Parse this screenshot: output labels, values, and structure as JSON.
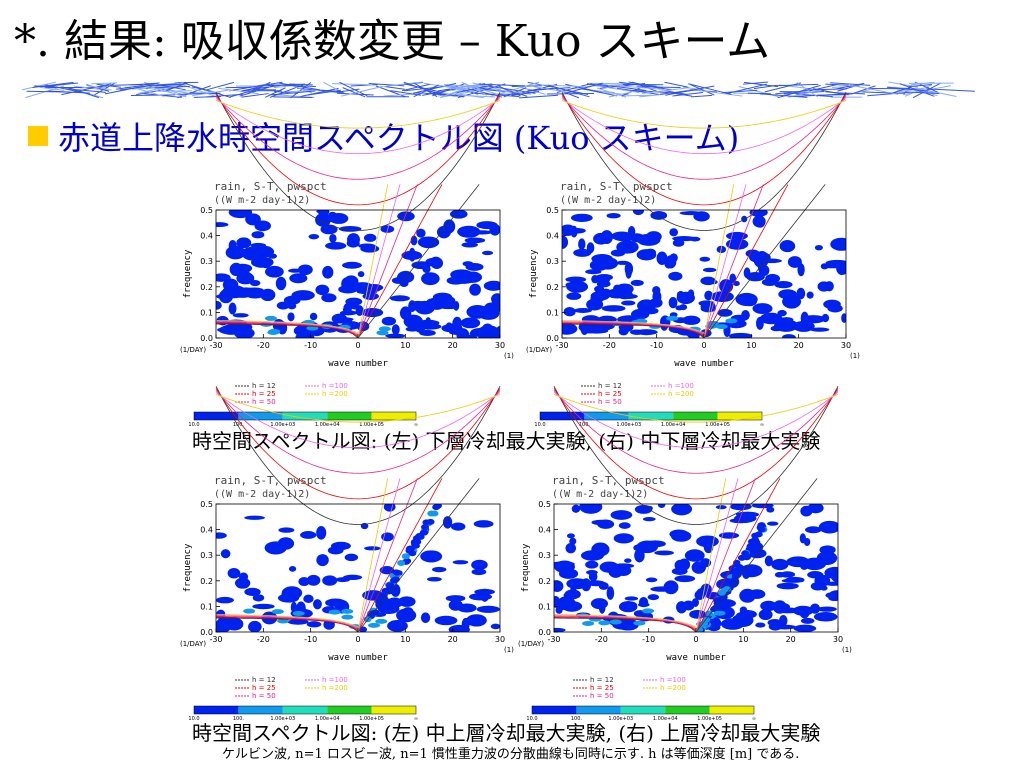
{
  "slide": {
    "title": "*. 結果: 吸収係数変更 – Kuo スキーム",
    "subtitle": "赤道上降水時空間スペクトル図 (Kuo スキーム)",
    "caption_top": "時空間スペクトル図: (左) 下層冷却最大実験, (右) 中下層冷却最大実験",
    "caption_bottom": "時空間スペクトル図: (左) 中上層冷却最大実験, (右) 上層冷却最大実験",
    "footnote": "ケルビン波, n=1 ロスビー波, n=1 慣性重力波の分散曲線も同時に示す. h は等価深度 [m] である."
  },
  "chart_common": {
    "title_line1": "rain, S-T, pwspct",
    "title_line2": "((W m-2 day-1)2)",
    "xlabel": "wave number",
    "ylabel": "frequency",
    "x_unit": "(1)",
    "y_unit": "(1/DAY)",
    "x_ticks": [
      "-30",
      "-20",
      "-10",
      "0",
      "10",
      "20",
      "30"
    ],
    "y_ticks": [
      "0.0",
      "0.1",
      "0.2",
      "0.3",
      "0.4",
      "0.5"
    ],
    "legend": [
      "h = 12",
      "h = 25",
      "h = 50",
      "h =100",
      "h =200"
    ],
    "legend_colors": [
      "#333333",
      "#ee0000",
      "#ee2288",
      "#ee66ee",
      "#eecc00"
    ],
    "colorbar_labels": [
      "10.0",
      "100.",
      "1.00e+03",
      "1.00e+04",
      "1.00e+05",
      "∞"
    ],
    "colorbar_colors": [
      "#0022ee",
      "#1199ee",
      "#22ddbb",
      "#22cc22",
      "#eeee00"
    ]
  },
  "chart_data": [
    {
      "type": "heatmap",
      "name": "下層冷却最大実験",
      "xlim": [
        -30,
        30
      ],
      "ylim": [
        0,
        0.5
      ],
      "density": 0.78,
      "band": 0.0
    },
    {
      "type": "heatmap",
      "name": "中下層冷却最大実験",
      "xlim": [
        -30,
        30
      ],
      "ylim": [
        0,
        0.5
      ],
      "density": 0.82,
      "band": 0.0
    },
    {
      "type": "heatmap",
      "name": "中上層冷却最大実験",
      "xlim": [
        -30,
        30
      ],
      "ylim": [
        0,
        0.5
      ],
      "density": 0.25,
      "band": 1.0
    },
    {
      "type": "heatmap",
      "name": "上層冷却最大実験",
      "xlim": [
        -30,
        30
      ],
      "ylim": [
        0,
        0.5
      ],
      "density": 0.72,
      "band": 1.0
    }
  ]
}
